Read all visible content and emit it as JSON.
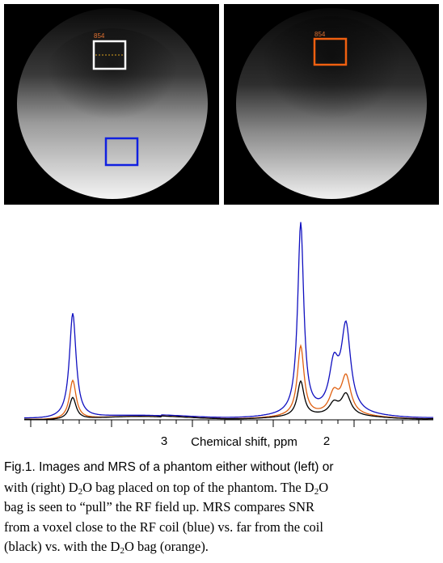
{
  "figure": {
    "left_image": {
      "voxel_label": "854"
    },
    "right_image": {
      "voxel_label": "854"
    },
    "spectrum": {
      "x_tick_labels": [
        "3",
        "2"
      ],
      "x_label": "Chemical shift, ppm"
    },
    "caption": {
      "lines": [
        [
          "Fig.1. Images and MRS of a phantom either without (left) or"
        ],
        [
          "with (right) D",
          "2",
          "O bag placed on top of the phantom. The D",
          "2",
          "O"
        ],
        [
          "bag is seen to “pull” the RF field up. MRS compares  SNR"
        ],
        [
          "from a voxel close to the RF coil (blue) vs. far from the coil"
        ],
        [
          "(black) vs. with the D",
          "2",
          "O bag (orange)."
        ]
      ]
    }
  }
}
